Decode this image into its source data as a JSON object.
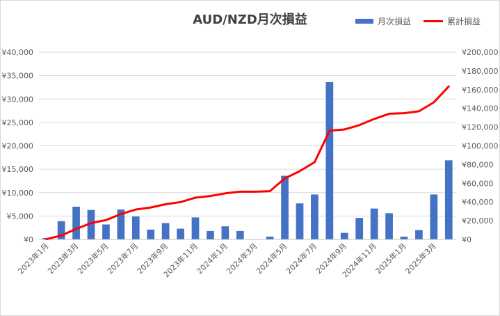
{
  "chart_data": {
    "type": "bar+line",
    "title": "AUD/NZD月次損益",
    "legend_position": "top-right",
    "grid": true,
    "categories": [
      "2023年1月",
      "2023年2月",
      "2023年3月",
      "2023年4月",
      "2023年5月",
      "2023年6月",
      "2023年7月",
      "2023年8月",
      "2023年9月",
      "2023年10月",
      "2023年11月",
      "2023年12月",
      "2024年1月",
      "2024年2月",
      "2024年3月",
      "2024年4月",
      "2024年5月",
      "2024年6月",
      "2024年7月",
      "2024年8月",
      "2024年9月",
      "2024年10月",
      "2024年11月",
      "2024年12月",
      "2025年1月",
      "2025年2月",
      "2025年3月",
      "2025年4月"
    ],
    "x_tick_labels": [
      "2023年1月",
      "2023年3月",
      "2023年5月",
      "2023年7月",
      "2023年9月",
      "2023年11月",
      "2024年1月",
      "2024年3月",
      "2024年5月",
      "2024年7月",
      "2024年9月",
      "2024年11月",
      "2025年1月",
      "2025年3月"
    ],
    "series": [
      {
        "name": "月次損益",
        "type": "bar",
        "axis": "left",
        "color": "#4472c4",
        "values": [
          300,
          3900,
          7000,
          6300,
          3200,
          6400,
          4900,
          2100,
          3500,
          2300,
          4700,
          1800,
          2800,
          1800,
          0,
          600,
          13600,
          7700,
          9600,
          33600,
          1400,
          4600,
          6600,
          5600,
          600,
          2000,
          9600,
          16900
        ]
      },
      {
        "name": "累計損益",
        "type": "line",
        "axis": "right",
        "color": "#ff0000",
        "values": [
          300,
          4200,
          11200,
          17500,
          20700,
          27100,
          32000,
          34100,
          37600,
          39900,
          44600,
          46400,
          49200,
          51000,
          51000,
          51600,
          65200,
          72900,
          82500,
          116100,
          117500,
          122100,
          128700,
          134300,
          134900,
          136900,
          146500,
          163400
        ]
      }
    ],
    "y_left": {
      "min": 0,
      "max": 40000,
      "step": 5000,
      "tick_labels": [
        "¥0",
        "¥5,000",
        "¥10,000",
        "¥15,000",
        "¥20,000",
        "¥25,000",
        "¥30,000",
        "¥35,000",
        "¥40,000"
      ]
    },
    "y_right": {
      "min": 0,
      "max": 200000,
      "step": 20000,
      "tick_labels": [
        "¥0",
        "¥20,000",
        "¥40,000",
        "¥60,000",
        "¥80,000",
        "¥100,000",
        "¥120,000",
        "¥140,000",
        "¥160,000",
        "¥180,000",
        "¥200,000"
      ]
    }
  }
}
